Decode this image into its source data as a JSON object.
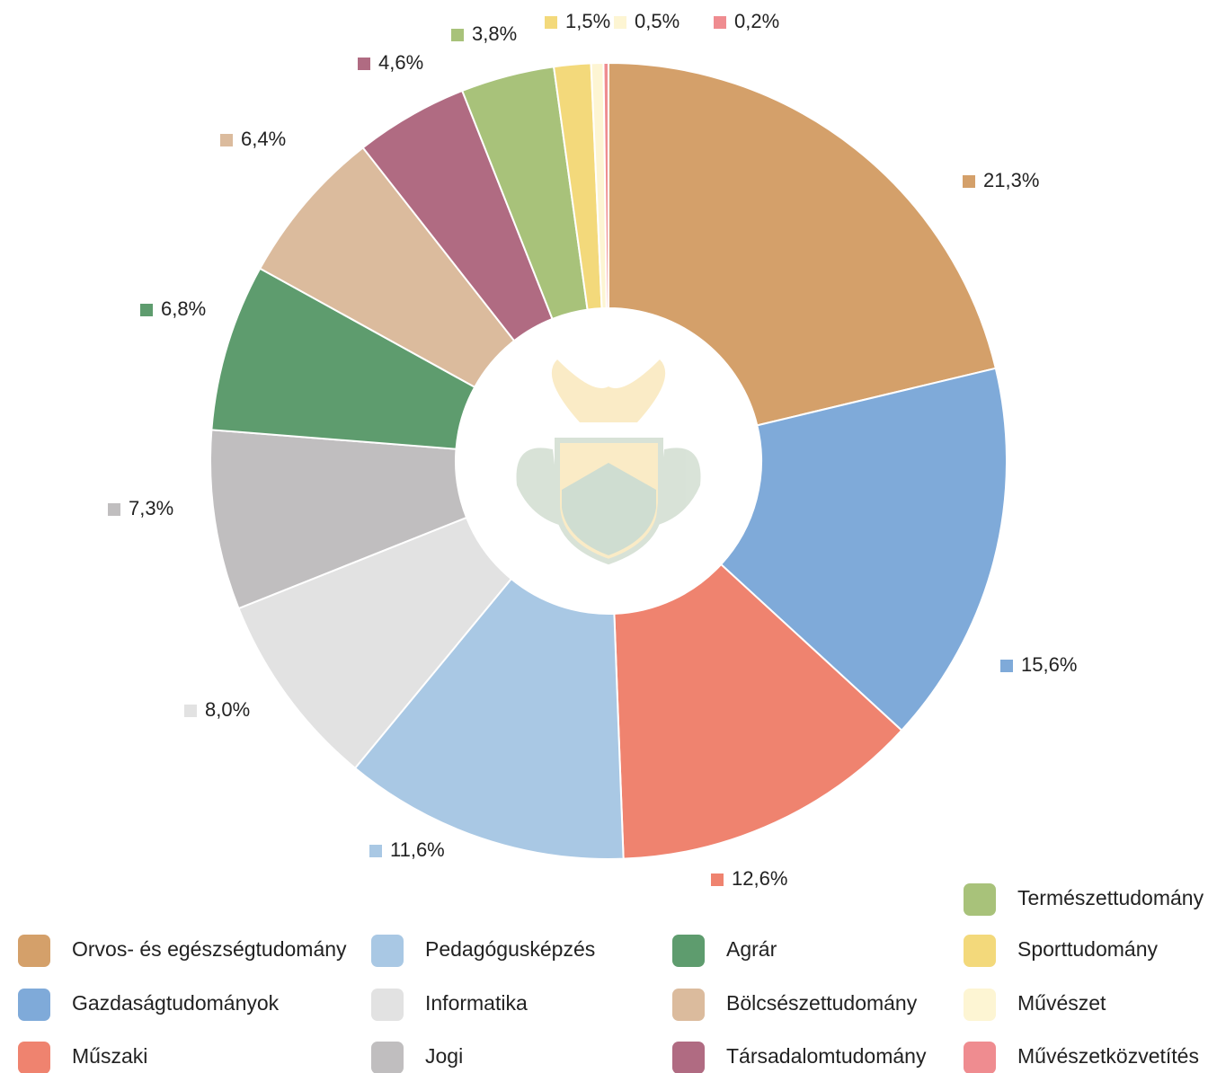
{
  "chart_data": {
    "type": "donut",
    "categories": [
      "Orvos- és egészségtudomány",
      "Gazdaságtudományok",
      "Műszaki",
      "Pedagógusképzés",
      "Informatika",
      "Jogi",
      "Agrár",
      "Bölcsészettudomány",
      "Társadalomtudomány",
      "Természettudomány",
      "Sporttudomány",
      "Művészet",
      "Művészetközvetítés"
    ],
    "values": [
      21.3,
      15.6,
      12.6,
      11.6,
      8.0,
      7.3,
      6.8,
      6.4,
      4.6,
      3.8,
      1.5,
      0.5,
      0.2
    ],
    "value_labels": [
      "21,3%",
      "15,6%",
      "12,6%",
      "11,6%",
      "8,0%",
      "7,3%",
      "6,8%",
      "6,4%",
      "4,6%",
      "3,8%",
      "1,5%",
      "0,5%",
      "0,2%"
    ],
    "colors": [
      "#d4a06a",
      "#7faad9",
      "#ef836f",
      "#a9c8e4",
      "#e2e2e2",
      "#c0bebf",
      "#5e9c6e",
      "#dbbb9d",
      "#b06b82",
      "#a8c27a",
      "#f3d97b",
      "#fdf5d3",
      "#ef8c90"
    ]
  }
}
